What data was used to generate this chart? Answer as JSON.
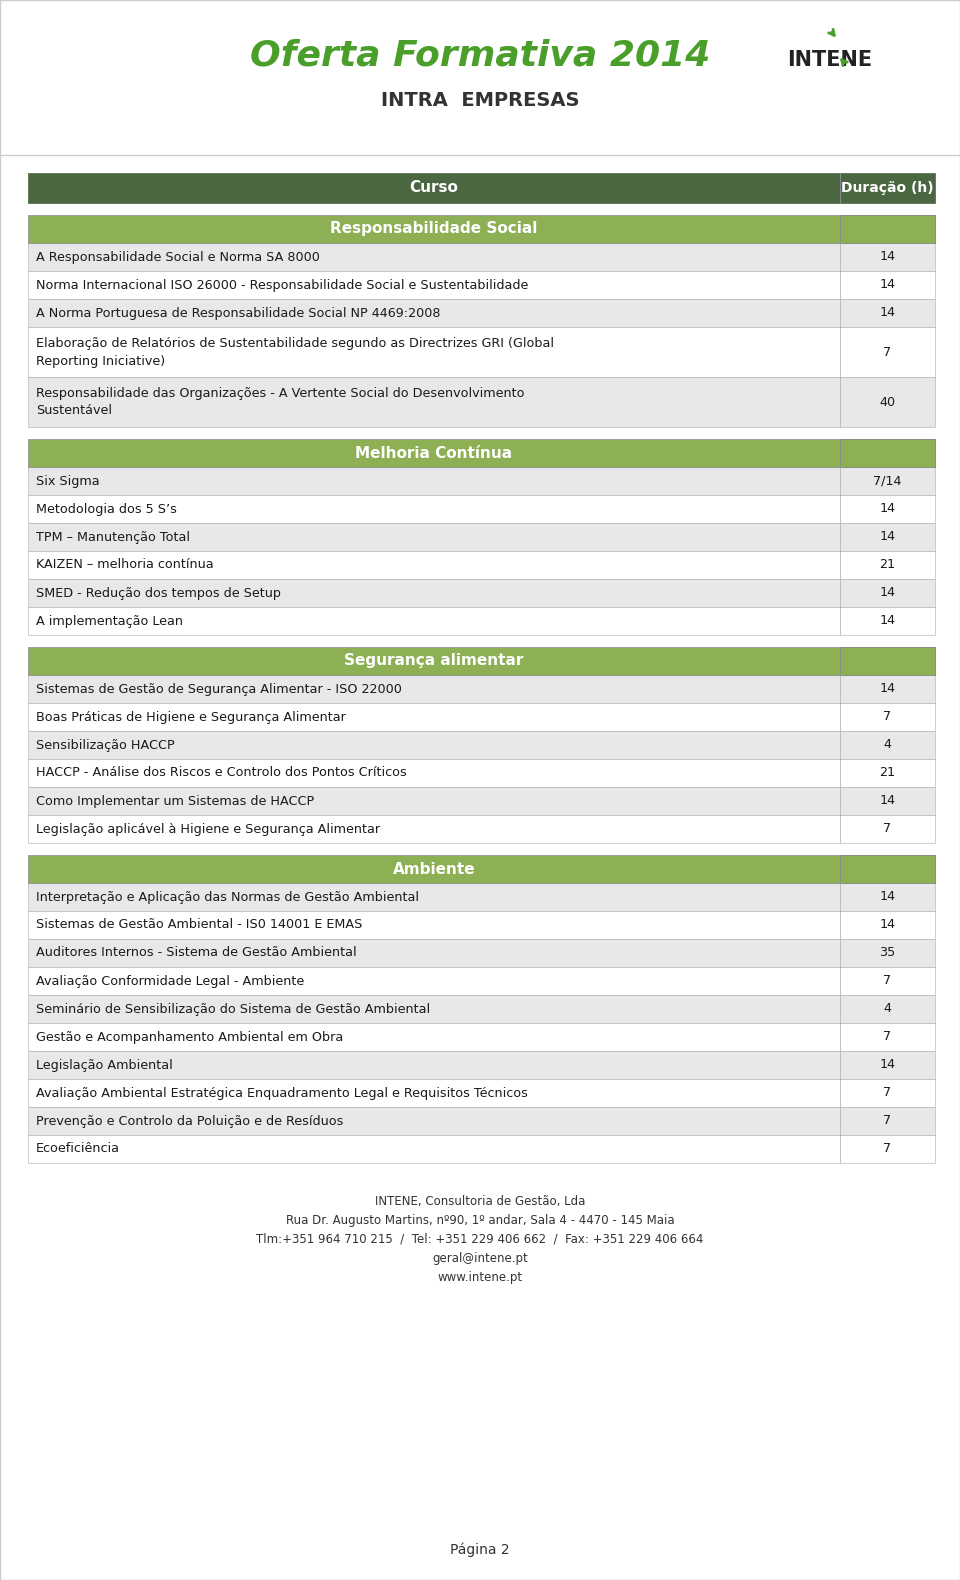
{
  "title_main": "Oferta Formativa 2014",
  "title_sub": "INTRA  EMPRESAS",
  "header_col1": "Curso",
  "header_col2": "Duração (h)",
  "dark_green": "#4a6741",
  "light_green": "#8db055",
  "light_gray": "#e8e8e8",
  "mid_gray": "#d0d0d0",
  "white": "#ffffff",
  "black": "#1a1a1a",
  "title_color": "#4a9e2a",
  "sections": [
    {
      "title": "Responsabilidade Social",
      "title_color": "#8db055",
      "rows": [
        {
          "course": "A Responsabilidade Social e Norma SA 8000",
          "duration": "14",
          "multiline": false
        },
        {
          "course": "Norma Internacional ISO 26000 - Responsabilidade Social e Sustentabilidade",
          "duration": "14",
          "multiline": false
        },
        {
          "course": "A Norma Portuguesa de Responsabilidade Social NP 4469:2008",
          "duration": "14",
          "multiline": false
        },
        {
          "course": "Elaboração de Relatórios de Sustentabilidade segundo as Directrizes GRI (Global\nReporting Iniciative)",
          "duration": "7",
          "multiline": true
        },
        {
          "course": "Responsabilidade das Organizações - A Vertente Social do Desenvolvimento\nSustentável",
          "duration": "40",
          "multiline": true
        }
      ]
    },
    {
      "title": "Melhoria Contínua",
      "title_color": "#8db055",
      "rows": [
        {
          "course": "Six Sigma",
          "duration": "7/14",
          "multiline": false
        },
        {
          "course": "Metodologia dos 5 S’s",
          "duration": "14",
          "multiline": false
        },
        {
          "course": "TPM – Manutenção Total",
          "duration": "14",
          "multiline": false
        },
        {
          "course": "KAIZEN – melhoria contínua",
          "duration": "21",
          "multiline": false
        },
        {
          "course": "SMED - Redução dos tempos de Setup",
          "duration": "14",
          "multiline": false
        },
        {
          "course": "A implementação Lean",
          "duration": "14",
          "multiline": false
        }
      ]
    },
    {
      "title": "Segurança alimentar",
      "title_color": "#8db055",
      "rows": [
        {
          "course": "Sistemas de Gestão de Segurança Alimentar - ISO 22000",
          "duration": "14",
          "multiline": false
        },
        {
          "course": "Boas Práticas de Higiene e Segurança Alimentar",
          "duration": "7",
          "multiline": false
        },
        {
          "course": "Sensibilização HACCP",
          "duration": "4",
          "multiline": false
        },
        {
          "course": "HACCP - Análise dos Riscos e Controlo dos Pontos Críticos",
          "duration": "21",
          "multiline": false
        },
        {
          "course": "Como Implementar um Sistemas de HACCP",
          "duration": "14",
          "multiline": false
        },
        {
          "course": "Legislação aplicável à Higiene e Segurança Alimentar",
          "duration": "7",
          "multiline": false
        }
      ]
    },
    {
      "title": "Ambiente",
      "title_color": "#8db055",
      "rows": [
        {
          "course": "Interpretação e Aplicação das Normas de Gestão Ambiental",
          "duration": "14",
          "multiline": false
        },
        {
          "course": "Sistemas de Gestão Ambiental - IS0 14001 E EMAS",
          "duration": "14",
          "multiline": false
        },
        {
          "course": "Auditores Internos - Sistema de Gestão Ambiental",
          "duration": "35",
          "multiline": false
        },
        {
          "course": "Avaliação Conformidade Legal - Ambiente",
          "duration": "7",
          "multiline": false
        },
        {
          "course": "Seminário de Sensibilização do Sistema de Gestão Ambiental",
          "duration": "4",
          "multiline": false
        },
        {
          "course": "Gestão e Acompanhamento Ambiental em Obra",
          "duration": "7",
          "multiline": false
        },
        {
          "course": "Legislação Ambiental",
          "duration": "14",
          "multiline": false
        },
        {
          "course": "Avaliação Ambiental Estratégica Enquadramento Legal e Requisitos Técnicos",
          "duration": "7",
          "multiline": false
        },
        {
          "course": "Prevenção e Controlo da Poluição e de Resíduos",
          "duration": "7",
          "multiline": false
        },
        {
          "course": "Ecoeficiência",
          "duration": "7",
          "multiline": false
        }
      ]
    }
  ],
  "footer_lines": [
    "INTENE, Consultoria de Gestão, Lda",
    "Rua Dr. Augusto Martins, nº90, 1º andar, Sala 4 - 4470 - 145 Maia",
    "Tlm:+351 964 710 215  /  Tel: +351 229 406 662  /  Fax: +351 229 406 664",
    "geral@intene.pt",
    "www.intene.pt"
  ],
  "page_num": "Página 2"
}
